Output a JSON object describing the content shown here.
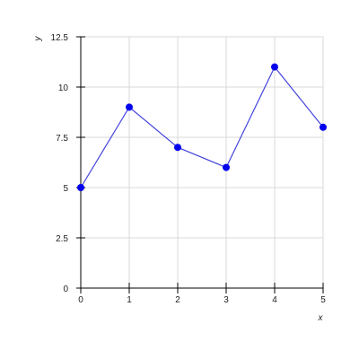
{
  "chart_data": {
    "type": "line",
    "xlabel": "x",
    "ylabel": "y",
    "xlim": [
      0,
      5
    ],
    "ylim": [
      0,
      12.5
    ],
    "xticks": [
      0,
      1,
      2,
      3,
      4,
      5
    ],
    "xtick_labels": [
      "0",
      "1",
      "2",
      "3",
      "4",
      "5"
    ],
    "yticks": [
      0,
      2.5,
      5,
      7.5,
      10,
      12.5
    ],
    "ytick_labels": [
      "0",
      "2.5",
      "5",
      "7.5",
      "10",
      "12.5"
    ],
    "grid": true,
    "series": [
      {
        "x": [
          0,
          1,
          2,
          3,
          4,
          5
        ],
        "y": [
          5,
          9,
          7,
          6,
          11,
          8
        ],
        "line_color": "#4444dd",
        "marker_color": "#0000ee"
      }
    ]
  },
  "colors": {
    "grid": "#d8d8d8",
    "axis": "#000000",
    "text": "#222222"
  }
}
